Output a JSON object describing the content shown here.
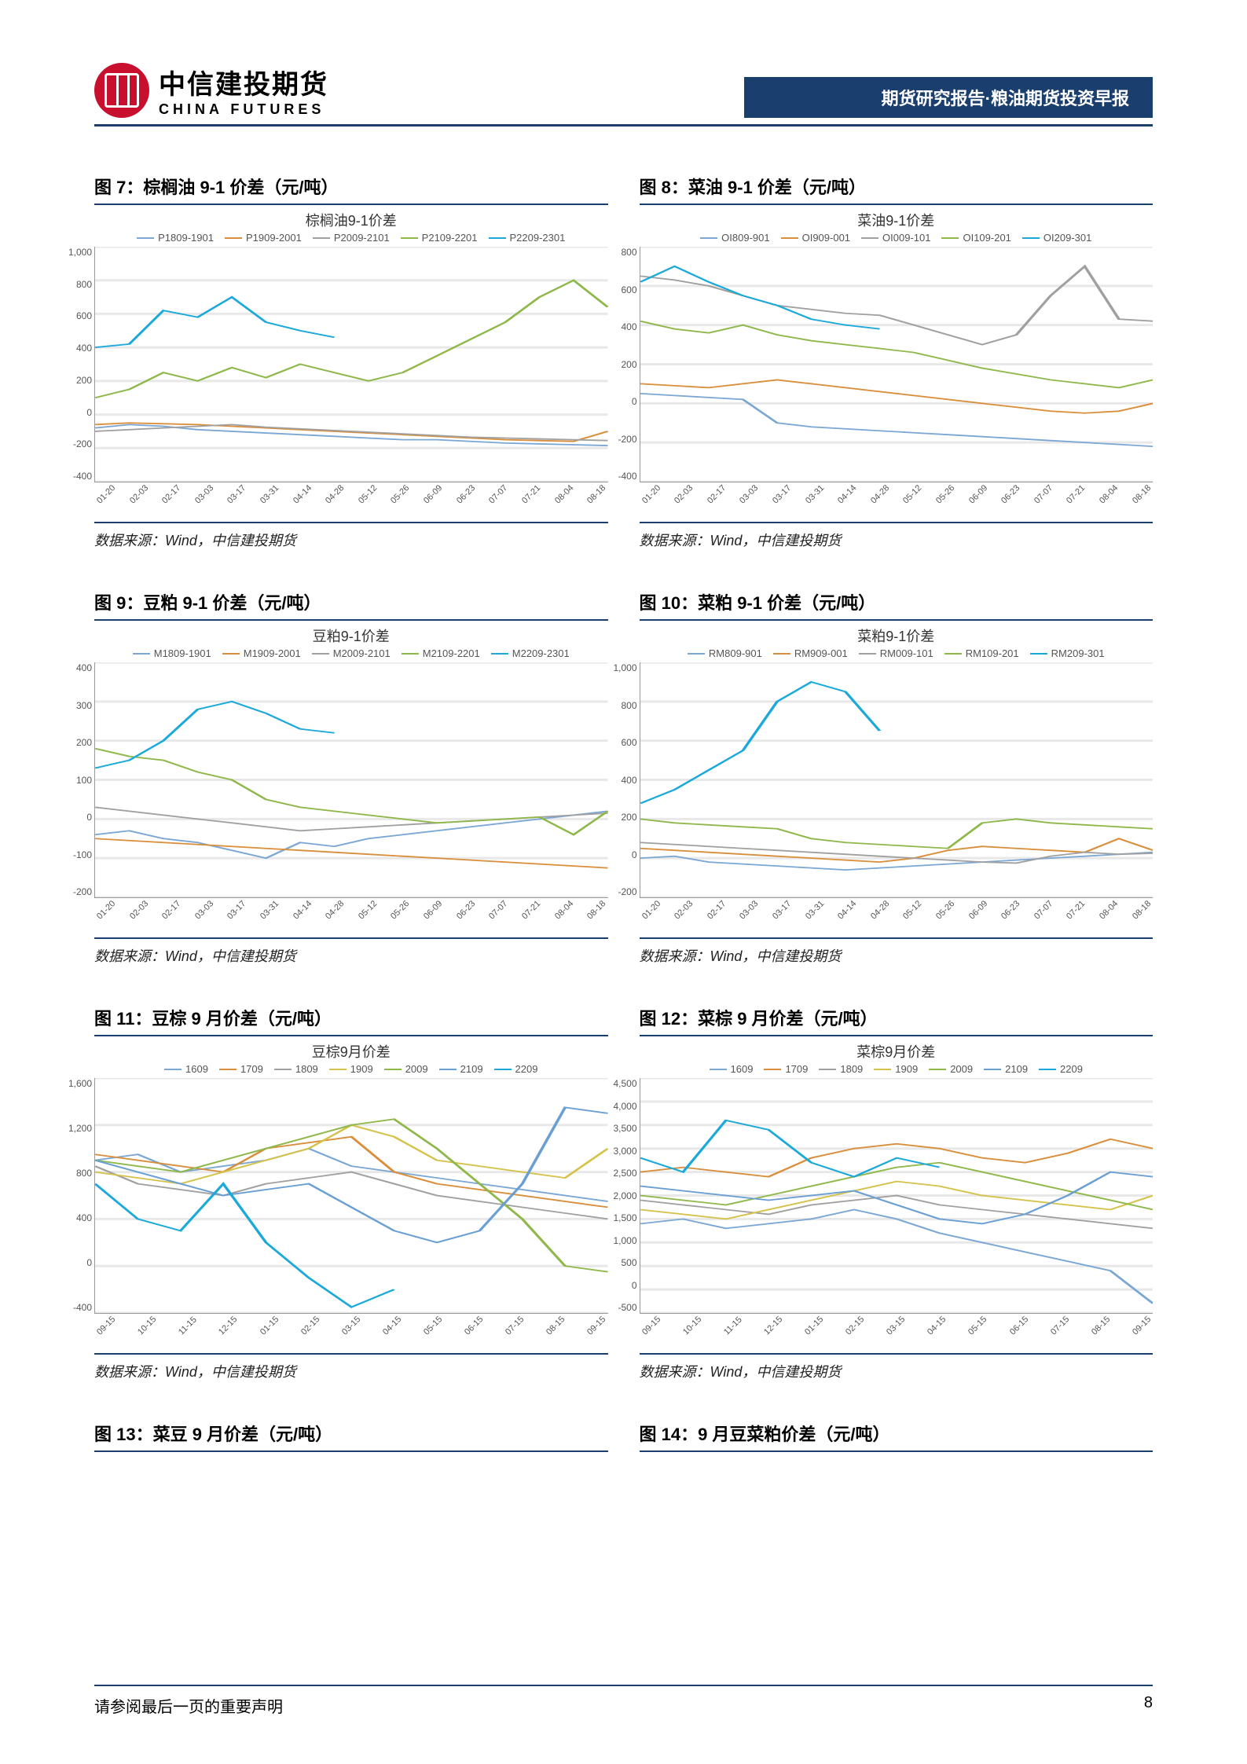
{
  "header": {
    "logo_cn": "中信建投期货",
    "logo_en": "CHINA FUTURES",
    "bar_text": "期货研究报告·粮油期货投资早报"
  },
  "footer": {
    "disclaimer": "请参阅最后一页的重要声明",
    "page_number": "8"
  },
  "palette": {
    "c1": "#7ba7d4",
    "c2": "#d98e3c",
    "c3": "#a0a0a0",
    "c4": "#d4c24a",
    "c5": "#8fb84a",
    "c6": "#1aa9d9"
  },
  "x_labels_a": [
    "01-20",
    "02-03",
    "02-17",
    "03-03",
    "03-17",
    "03-31",
    "04-14",
    "04-28",
    "05-12",
    "05-26",
    "06-09",
    "06-23",
    "07-07",
    "07-21",
    "08-04",
    "08-18"
  ],
  "x_labels_b": [
    "09-15",
    "10-15",
    "11-15",
    "12-15",
    "01-15",
    "02-15",
    "03-15",
    "04-15",
    "05-15",
    "06-15",
    "07-15",
    "08-15",
    "09-15"
  ],
  "source_text": "数据来源：Wind，中信建投期货",
  "charts": [
    {
      "id": "c7",
      "title": "图 7：棕榈油 9-1 价差（元/吨）",
      "inner_title": "棕榈油9-1价差",
      "type": "line",
      "x_labels_key": "x_labels_a",
      "ylim": [
        -400,
        1000
      ],
      "ytick_step": 200,
      "series": [
        {
          "name": "P1809-1901",
          "color": "#7ba7d4",
          "data": [
            -80,
            -60,
            -70,
            -90,
            -100,
            -110,
            -120,
            -130,
            -140,
            -150,
            -150,
            -160,
            -170,
            -175,
            -180,
            -185
          ]
        },
        {
          "name": "P1909-2001",
          "color": "#d98e3c",
          "data": [
            -60,
            -50,
            -55,
            -60,
            -70,
            -80,
            -90,
            -100,
            -110,
            -120,
            -130,
            -140,
            -150,
            -155,
            -160,
            -100
          ]
        },
        {
          "name": "P2009-2101",
          "color": "#a0a0a0",
          "data": [
            -100,
            -90,
            -80,
            -70,
            -60,
            -75,
            -85,
            -95,
            -105,
            -115,
            -125,
            -135,
            -140,
            -145,
            -150,
            -155
          ]
        },
        {
          "name": "P2109-2201",
          "color": "#8fb84a",
          "data": [
            100,
            150,
            250,
            200,
            280,
            220,
            300,
            250,
            200,
            250,
            350,
            450,
            550,
            700,
            800,
            640
          ]
        },
        {
          "name": "P2209-2301",
          "color": "#1aa9d9",
          "data": [
            400,
            420,
            620,
            580,
            700,
            550,
            500,
            460,
            null,
            null,
            null,
            null,
            null,
            null,
            null,
            null
          ]
        }
      ]
    },
    {
      "id": "c8",
      "title": "图 8：菜油 9-1 价差（元/吨）",
      "inner_title": "菜油9-1价差",
      "type": "line",
      "x_labels_key": "x_labels_a",
      "ylim": [
        -400,
        800
      ],
      "ytick_step": 200,
      "series": [
        {
          "name": "OI809-901",
          "color": "#7ba7d4",
          "data": [
            50,
            40,
            30,
            20,
            -100,
            -120,
            -130,
            -140,
            -150,
            -160,
            -170,
            -180,
            -190,
            -200,
            -210,
            -220
          ]
        },
        {
          "name": "OI909-001",
          "color": "#d98e3c",
          "data": [
            100,
            90,
            80,
            100,
            120,
            100,
            80,
            60,
            40,
            20,
            0,
            -20,
            -40,
            -50,
            -40,
            0
          ]
        },
        {
          "name": "OI009-101",
          "color": "#a0a0a0",
          "data": [
            650,
            630,
            600,
            550,
            500,
            480,
            460,
            450,
            400,
            350,
            300,
            350,
            550,
            700,
            430,
            420
          ]
        },
        {
          "name": "OI109-201",
          "color": "#8fb84a",
          "data": [
            420,
            380,
            360,
            400,
            350,
            320,
            300,
            280,
            260,
            220,
            180,
            150,
            120,
            100,
            80,
            120
          ]
        },
        {
          "name": "OI209-301",
          "color": "#1aa9d9",
          "data": [
            620,
            700,
            620,
            550,
            500,
            430,
            400,
            380,
            null,
            null,
            null,
            null,
            null,
            null,
            null,
            null
          ]
        }
      ]
    },
    {
      "id": "c9",
      "title": "图 9：豆粕 9-1 价差（元/吨）",
      "inner_title": "豆粕9-1价差",
      "type": "line",
      "x_labels_key": "x_labels_a",
      "ylim": [
        -200,
        400
      ],
      "ytick_step": 100,
      "series": [
        {
          "name": "M1809-1901",
          "color": "#7ba7d4",
          "data": [
            -40,
            -30,
            -50,
            -60,
            -80,
            -100,
            -60,
            -70,
            -50,
            -40,
            -30,
            -20,
            -10,
            0,
            10,
            20
          ]
        },
        {
          "name": "M1909-2001",
          "color": "#d98e3c",
          "data": [
            -50,
            -55,
            -60,
            -65,
            -70,
            -75,
            -80,
            -85,
            -90,
            -95,
            -100,
            -105,
            -110,
            -115,
            -120,
            -125
          ]
        },
        {
          "name": "M2009-2101",
          "color": "#a0a0a0",
          "data": [
            30,
            20,
            10,
            0,
            -10,
            -20,
            -30,
            -25,
            -20,
            -15,
            -10,
            -5,
            0,
            5,
            10,
            15
          ]
        },
        {
          "name": "M2109-2201",
          "color": "#8fb84a",
          "data": [
            180,
            160,
            150,
            120,
            100,
            50,
            30,
            20,
            10,
            0,
            -10,
            -5,
            0,
            5,
            -40,
            20
          ]
        },
        {
          "name": "M2209-2301",
          "color": "#1aa9d9",
          "data": [
            130,
            150,
            200,
            280,
            300,
            270,
            230,
            220,
            null,
            null,
            null,
            null,
            null,
            null,
            null,
            null
          ]
        }
      ]
    },
    {
      "id": "c10",
      "title": "图 10：菜粕 9-1 价差（元/吨）",
      "inner_title": "菜粕9-1价差",
      "type": "line",
      "x_labels_key": "x_labels_a",
      "ylim": [
        -200,
        1000
      ],
      "ytick_step": 200,
      "series": [
        {
          "name": "RM809-901",
          "color": "#7ba7d4",
          "data": [
            0,
            10,
            -20,
            -30,
            -40,
            -50,
            -60,
            -50,
            -40,
            -30,
            -20,
            -10,
            0,
            10,
            20,
            30
          ]
        },
        {
          "name": "RM909-001",
          "color": "#d98e3c",
          "data": [
            50,
            40,
            30,
            20,
            10,
            0,
            -10,
            -20,
            0,
            40,
            60,
            50,
            40,
            30,
            100,
            40
          ]
        },
        {
          "name": "RM009-101",
          "color": "#a0a0a0",
          "data": [
            80,
            70,
            60,
            50,
            40,
            30,
            20,
            10,
            0,
            -10,
            -20,
            -25,
            10,
            30,
            20,
            25
          ]
        },
        {
          "name": "RM109-201",
          "color": "#8fb84a",
          "data": [
            200,
            180,
            170,
            160,
            150,
            100,
            80,
            70,
            60,
            50,
            180,
            200,
            180,
            170,
            160,
            150
          ]
        },
        {
          "name": "RM209-301",
          "color": "#1aa9d9",
          "data": [
            280,
            350,
            450,
            550,
            800,
            900,
            850,
            650,
            null,
            null,
            null,
            null,
            null,
            null,
            null,
            null
          ]
        }
      ]
    },
    {
      "id": "c11",
      "title": "图 11：豆棕 9 月价差（元/吨）",
      "inner_title": "豆棕9月价差",
      "type": "line",
      "x_labels_key": "x_labels_b",
      "ylim": [
        -400,
        1600
      ],
      "ytick_step": 400,
      "series": [
        {
          "name": "1609",
          "color": "#7ba7d4",
          "data": [
            900,
            950,
            800,
            850,
            900,
            1000,
            850,
            800,
            750,
            700,
            650,
            600,
            550
          ]
        },
        {
          "name": "1709",
          "color": "#d98e3c",
          "data": [
            950,
            900,
            850,
            800,
            1000,
            1050,
            1100,
            800,
            700,
            650,
            600,
            550,
            500
          ]
        },
        {
          "name": "1809",
          "color": "#a0a0a0",
          "data": [
            850,
            700,
            650,
            600,
            700,
            750,
            800,
            700,
            600,
            550,
            500,
            450,
            400
          ]
        },
        {
          "name": "1909",
          "color": "#d4c24a",
          "data": [
            800,
            750,
            700,
            800,
            900,
            1000,
            1200,
            1100,
            900,
            850,
            800,
            750,
            1000
          ]
        },
        {
          "name": "2009",
          "color": "#8fb84a",
          "data": [
            900,
            850,
            800,
            900,
            1000,
            1100,
            1200,
            1250,
            1000,
            700,
            400,
            0,
            -50
          ]
        },
        {
          "name": "2109",
          "color": "#6a9fd4",
          "data": [
            900,
            800,
            700,
            600,
            650,
            700,
            500,
            300,
            200,
            300,
            700,
            1350,
            1300
          ]
        },
        {
          "name": "2209",
          "color": "#1aa9d9",
          "data": [
            700,
            400,
            300,
            700,
            200,
            -100,
            -350,
            -200,
            null,
            null,
            null,
            null,
            null
          ]
        }
      ]
    },
    {
      "id": "c12",
      "title": "图 12：菜棕 9 月价差（元/吨）",
      "inner_title": "菜棕9月价差",
      "type": "line",
      "x_labels_key": "x_labels_b",
      "ylim": [
        -500,
        4500
      ],
      "ytick_step": 500,
      "series": [
        {
          "name": "1609",
          "color": "#7ba7d4",
          "data": [
            1400,
            1500,
            1300,
            1400,
            1500,
            1700,
            1500,
            1200,
            1000,
            800,
            600,
            400,
            -300
          ]
        },
        {
          "name": "1709",
          "color": "#d98e3c",
          "data": [
            2500,
            2600,
            2500,
            2400,
            2800,
            3000,
            3100,
            3000,
            2800,
            2700,
            2900,
            3200,
            3000
          ]
        },
        {
          "name": "1809",
          "color": "#a0a0a0",
          "data": [
            1900,
            1800,
            1700,
            1600,
            1800,
            1900,
            2000,
            1800,
            1700,
            1600,
            1500,
            1400,
            1300
          ]
        },
        {
          "name": "1909",
          "color": "#d4c24a",
          "data": [
            1700,
            1600,
            1500,
            1700,
            1900,
            2100,
            2300,
            2200,
            2000,
            1900,
            1800,
            1700,
            2000
          ]
        },
        {
          "name": "2009",
          "color": "#8fb84a",
          "data": [
            2000,
            1900,
            1800,
            2000,
            2200,
            2400,
            2600,
            2700,
            2500,
            2300,
            2100,
            1900,
            1700
          ]
        },
        {
          "name": "2109",
          "color": "#6a9fd4",
          "data": [
            2200,
            2100,
            2000,
            1900,
            2000,
            2100,
            1800,
            1500,
            1400,
            1600,
            2000,
            2500,
            2400
          ]
        },
        {
          "name": "2209",
          "color": "#1aa9d9",
          "data": [
            2800,
            2500,
            3600,
            3400,
            2700,
            2400,
            2800,
            2600,
            null,
            null,
            null,
            null,
            null
          ]
        }
      ]
    },
    {
      "id": "c13",
      "title": "图 13：菜豆 9 月价差（元/吨）",
      "title_only": true
    },
    {
      "id": "c14",
      "title": "图 14：9 月豆菜粕价差（元/吨）",
      "title_only": true
    }
  ]
}
